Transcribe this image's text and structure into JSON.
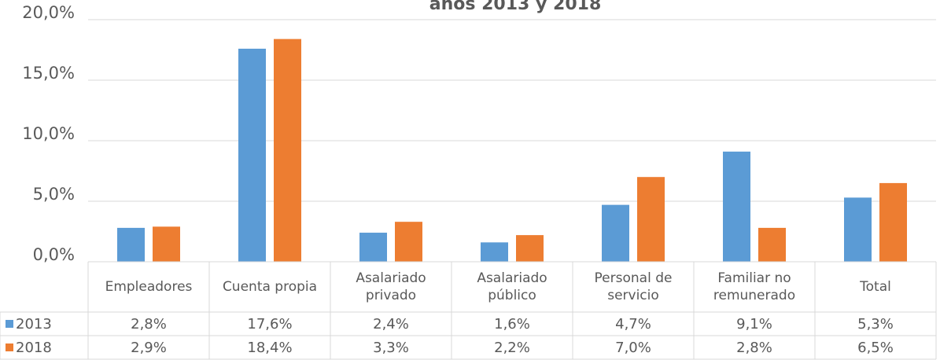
{
  "chart_data": {
    "type": "bar",
    "title": "años 2013 y 2018",
    "categories": [
      "Empleadores",
      "Cuenta propia",
      "Asalariado privado",
      "Asalariado público",
      "Personal de servicio",
      "Familiar no remunerado",
      "Total"
    ],
    "series": [
      {
        "name": "2013",
        "color": "#5b9bd5",
        "values": [
          2.8,
          17.6,
          2.4,
          1.6,
          4.7,
          9.1,
          5.3
        ],
        "value_labels": [
          "2,8%",
          "17,6%",
          "2,4%",
          "1,6%",
          "4,7%",
          "9,1%",
          "5,3%"
        ]
      },
      {
        "name": "2018",
        "color": "#ed7d31",
        "values": [
          2.9,
          18.4,
          3.3,
          2.2,
          7.0,
          2.8,
          6.5
        ],
        "value_labels": [
          "2,9%",
          "18,4%",
          "3,3%",
          "2,2%",
          "7,0%",
          "2,8%",
          "6,5%"
        ]
      }
    ],
    "ylim": [
      0,
      20
    ],
    "yticks": [
      {
        "value": 0,
        "label": "0,0%"
      },
      {
        "value": 5,
        "label": "5,0%"
      },
      {
        "value": 10,
        "label": "10,0%"
      },
      {
        "value": 15,
        "label": "15,0%"
      },
      {
        "value": 20,
        "label": "20,0%"
      }
    ],
    "grid": true,
    "data_table": true
  }
}
